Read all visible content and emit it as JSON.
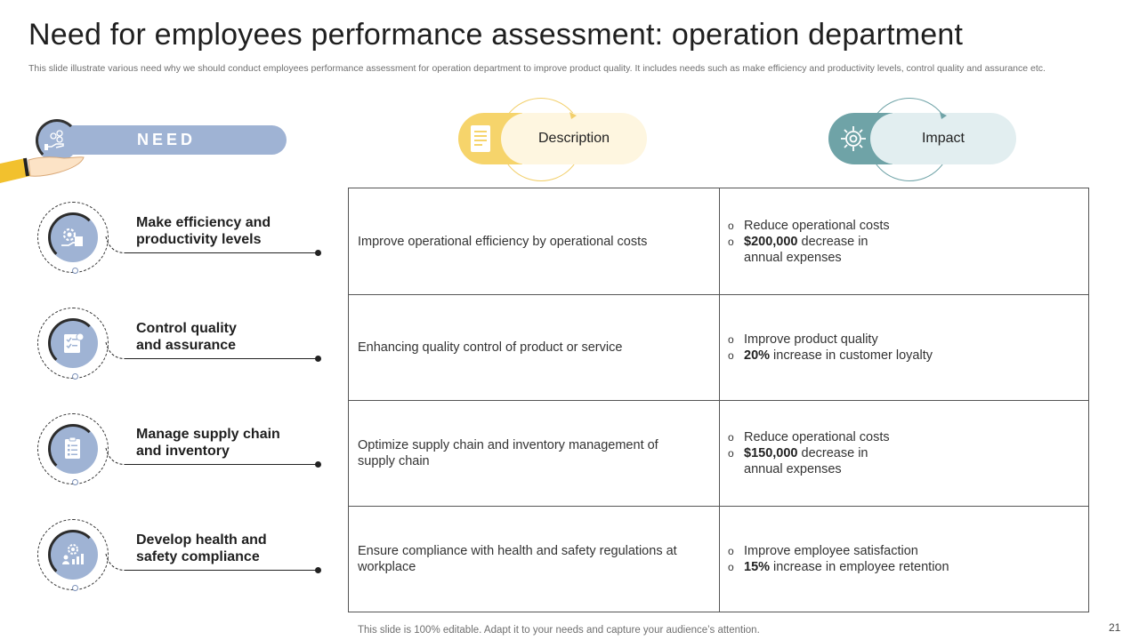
{
  "title": "Need for employees performance assessment: operation department",
  "subtitle": "This slide illustrate various need why we should conduct employees performance assessment for operation department to improve product quality. It includes needs such as make efficiency and productivity levels, control quality and assurance etc.",
  "need_label": "NEED",
  "headers": {
    "description": "Description",
    "impact": "Impact"
  },
  "needs": [
    {
      "label": "Make efficiency and productivity levels",
      "icon": "gear-hand-icon",
      "description": "Improve operational efficiency by operational costs",
      "impact": [
        {
          "bold": "",
          "text": "Reduce operational costs"
        },
        {
          "bold": "$200,000",
          "text": " decrease in annual expenses"
        }
      ]
    },
    {
      "label": "Control quality and assurance",
      "icon": "checklist-icon",
      "description": "Enhancing quality control of product or service",
      "impact": [
        {
          "bold": "",
          "text": "Improve product quality"
        },
        {
          "bold": "20%",
          "text": " increase in customer loyalty"
        }
      ]
    },
    {
      "label": "Manage supply chain and inventory",
      "icon": "clipboard-icon",
      "description": "Optimize supply chain and inventory management of supply chain",
      "impact": [
        {
          "bold": "",
          "text": "Reduce operational costs"
        },
        {
          "bold": "$150,000",
          "text": " decrease in annual expenses"
        }
      ]
    },
    {
      "label": "Develop health and safety compliance",
      "icon": "safety-gear-icon",
      "description": "Ensure compliance with health and safety regulations at workplace",
      "impact": [
        {
          "bold": "",
          "text": "Improve employee satisfaction"
        },
        {
          "bold": "15%",
          "text": " increase in employee retention"
        }
      ]
    }
  ],
  "footer": "This slide is 100% editable. Adapt it to your needs and capture your audience’s attention.",
  "page_number": "21",
  "colors": {
    "accent_blue": "#9fb3d4",
    "accent_yellow": "#f6d46b",
    "accent_teal": "#6fa3a7"
  }
}
